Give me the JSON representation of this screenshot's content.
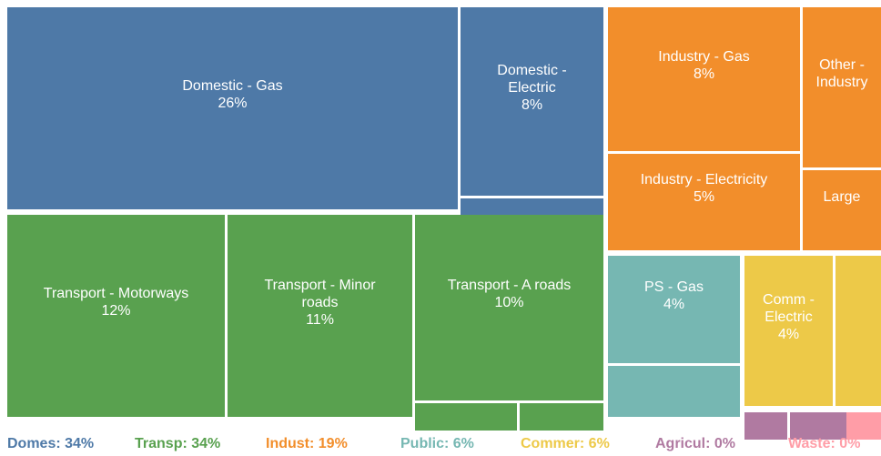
{
  "chart_data": {
    "type": "treemap",
    "groups": [
      {
        "legend": "Domes: 34%",
        "total": 34,
        "color": "#4e79a7",
        "tiles": [
          {
            "label": "Domestic - Gas",
            "value": 26,
            "value_label": "26%"
          },
          {
            "label": "Domestic - Electric",
            "value": 8,
            "value_label": "8%"
          },
          {
            "label": null,
            "value": 0.5
          }
        ]
      },
      {
        "legend": "Transp: 34%",
        "total": 34,
        "color": "#59a14f",
        "tiles": [
          {
            "label": "Transport - Motorways",
            "value": 12,
            "value_label": "12%"
          },
          {
            "label": "Transport - Minor roads",
            "value": 11,
            "value_label": "11%"
          },
          {
            "label": "Transport - A roads",
            "value": 10,
            "value_label": "10%"
          },
          {
            "label": null,
            "value": 0.4
          },
          {
            "label": null,
            "value": 0.3
          }
        ]
      },
      {
        "legend": "Indust: 19%",
        "total": 19,
        "color": "#f28e2b",
        "tiles": [
          {
            "label": "Industry - Gas",
            "value": 8,
            "value_label": "8%"
          },
          {
            "label": "Other - Industry",
            "value": 3.6
          },
          {
            "label": "Industry - Electricity",
            "value": 5,
            "value_label": "5%"
          },
          {
            "label": "Large",
            "value": 1.8
          }
        ]
      },
      {
        "legend": "Public: 6%",
        "total": 6,
        "color": "#76b7b2",
        "tiles": [
          {
            "label": "PS - Gas",
            "value": 4,
            "value_label": "4%"
          },
          {
            "label": null,
            "value": 1.9
          }
        ]
      },
      {
        "legend": "Commer: 6%",
        "total": 6,
        "color": "#edc948",
        "tiles": [
          {
            "label": "Comm - Electric",
            "value": 4,
            "value_label": "4%"
          },
          {
            "label": null,
            "value": 1.9
          }
        ]
      },
      {
        "legend": "Agricul: 0%",
        "total": 0,
        "color": "#b07aa1",
        "tiles": [
          {
            "label": null,
            "value": 0.06
          },
          {
            "label": null,
            "value": 0.03
          },
          {
            "label": null,
            "value": 0.02
          },
          {
            "label": null,
            "value": 0.01
          }
        ]
      },
      {
        "legend": "Waste: 0%",
        "total": 0,
        "color": "#ff9da7",
        "tiles": [
          {
            "label": null,
            "value": 0.1
          }
        ]
      }
    ]
  }
}
